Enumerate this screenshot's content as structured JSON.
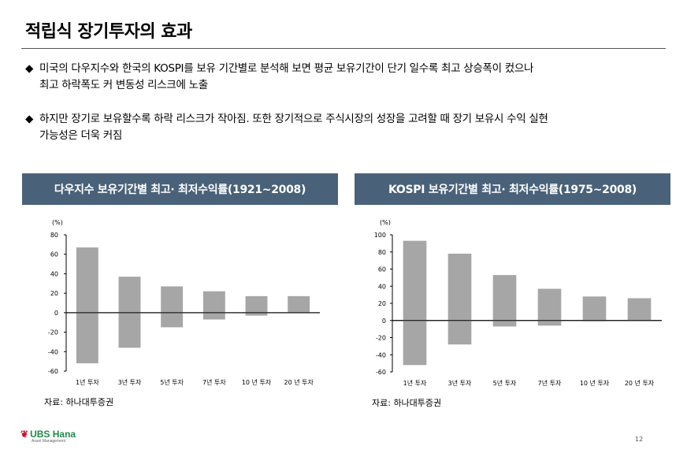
{
  "page": {
    "title": "적립식 장기투자의 효과",
    "bullets": [
      {
        "mark": "◆",
        "line1": "미국의 다우지수와 한국의 KOSPI를 보유 기간별로 분석해 보면 평균 보유기간이 단기 일수록   최고 상승폭이 컸으나",
        "line2": "최고 하락폭도 커 변동성 리스크에 노출"
      },
      {
        "mark": "◆",
        "line1": "하지만 장기로 보유할수록 하락 리스크가 작아짐. 또한 장기적으로 주식시장의 성장을 고려할 때  장기 보유시 수익 실현",
        "line2": "가능성은 더욱 커짐"
      }
    ],
    "page_number": "12",
    "logo": {
      "name": "UBS Hana",
      "subtitle": "Asset Management"
    }
  },
  "chart_data": [
    {
      "type": "bar",
      "title": "다우지수 보유기간별 최고· 최저수익률(1921~2008)",
      "unit_label": "(%)",
      "categories": [
        "1년  투자",
        "3년  투자",
        "5년  투자",
        "7년  투자",
        "10 년  투자",
        "20 년  투자"
      ],
      "series": [
        {
          "values": [
            67,
            37,
            27,
            22,
            17,
            17
          ]
        },
        {
          "values": [
            -52,
            -36,
            -15,
            -7,
            -3,
            0
          ]
        }
      ],
      "ylim": [
        -60,
        80
      ],
      "yticks": [
        "80",
        "60",
        "40",
        "20",
        "0",
        "-20",
        "-40",
        "-60"
      ],
      "bar_color": "#a6a6a6",
      "source": "자료: 하나대투증권"
    },
    {
      "type": "bar",
      "title": "KOSPI 보유기간별 최고· 최저수익률(1975~2008)",
      "unit_label": "(%)",
      "categories": [
        "1년  투자",
        "3년  투자",
        "5년  투자",
        "7년  투자",
        "10 년  투자",
        "20 년  투자"
      ],
      "series": [
        {
          "values": [
            93,
            78,
            53,
            37,
            28,
            26
          ]
        },
        {
          "values": [
            -52,
            -28,
            -7,
            -6,
            -1,
            0
          ]
        }
      ],
      "ylim": [
        -60,
        100
      ],
      "yticks": [
        "100",
        "80",
        "60",
        "40",
        "20",
        "0",
        "-20",
        "-40",
        "-60"
      ],
      "bar_color": "#a6a6a6",
      "source": "자료: 하나대투증권"
    }
  ]
}
